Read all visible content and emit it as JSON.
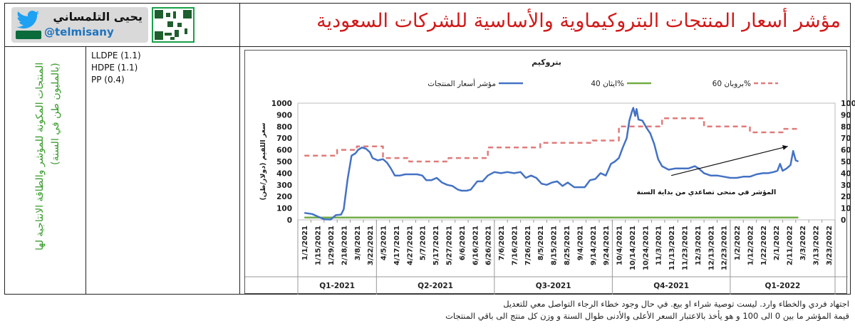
{
  "header": {
    "title": "مؤشر أسعار المنتجات البتروكيماوية والأساسية للشركات السعودية",
    "brand_name_ar": "يحيى التلمساني",
    "brand_handle": "@telmisany"
  },
  "sidebar": {
    "label": "المنتجات المكونة للمؤشر والطاقة الانتاجية لها (بالمليون طن في السنة)",
    "products": [
      "LLDPE (1.1)",
      "HDPE (1.1)",
      "PP (0.4)"
    ]
  },
  "footer": {
    "disclaimer": "اجتهاد فردي والخطاء وارد. ليست توصية شراء او بيع. في حال وجود خطاء الرجاء التواصل معي للتعديل",
    "method": "قيمة المؤشر ما بين 0 الى 100 و هو يأخذ بالاعتبار السعر الأعلى والأدنى طوال السنة و وزن كل منتج الى باقي المنتجات"
  },
  "colors": {
    "title": "#d21919",
    "index_line": "#4472c4",
    "ethane_line": "#70ad47",
    "propane_line": "#e07b7b",
    "sidebar_text": "#3a9a2d",
    "handle": "#1e73be"
  },
  "chart_data": {
    "type": "line",
    "title": "بتروكيم",
    "ylabel": "سعر اللقيم (دولار/طن)",
    "ylim": [
      0,
      1000
    ],
    "y2lim": [
      0,
      100
    ],
    "yticks": [
      0,
      100,
      200,
      300,
      400,
      500,
      600,
      700,
      800,
      900,
      1000
    ],
    "y2ticks": [
      0,
      10,
      20,
      30,
      40,
      50,
      60,
      70,
      80,
      90,
      100
    ],
    "x_tick_labels": [
      "1/1/2021",
      "1/15/2021",
      "1/29/2021",
      "2/18/2021",
      "3/8/2021",
      "3/22/2021",
      "4/5/2021",
      "4/17/2021",
      "4/27/2021",
      "5/7/2021",
      "5/17/2021",
      "5/27/2021",
      "6/6/2021",
      "6/16/2021",
      "6/26/2021",
      "7/6/2021",
      "7/16/2021",
      "7/26/2021",
      "8/5/2021",
      "8/15/2021",
      "8/25/2021",
      "9/4/2021",
      "9/14/2021",
      "9/24/2021",
      "10/4/2021",
      "10/14/2021",
      "10/24/2021",
      "11/3/2021",
      "11/13/2021",
      "11/23/2021",
      "12/3/2021",
      "12/13/2021",
      "12/23/2021",
      "1/2/2022",
      "1/12/2022",
      "1/22/2022",
      "2/1/2022",
      "2/11/2022",
      "3/3/2022",
      "3/13/2022",
      "3/23/2022"
    ],
    "quarters": [
      "Q1-2021",
      "Q2-2021",
      "Q3-2021",
      "Q4-2021",
      "Q1-2022"
    ],
    "legend": [
      "بروبان 60%",
      "ايثان 40%",
      "مؤشر أسعار المنتجات"
    ],
    "annotation": "المؤشر في منحى تصاعدي من بداية السنة",
    "series": [
      {
        "name": "مؤشر أسعار المنتجات",
        "axis": "right",
        "style": "solid",
        "points": [
          [
            0,
            6
          ],
          [
            0.6,
            5
          ],
          [
            1,
            3
          ],
          [
            1.5,
            0.5
          ],
          [
            2,
            0.3
          ],
          [
            2.4,
            4
          ],
          [
            2.8,
            4.5
          ],
          [
            3,
            9
          ],
          [
            3.3,
            35
          ],
          [
            3.6,
            55
          ],
          [
            3.9,
            57
          ],
          [
            4.1,
            60
          ],
          [
            4.4,
            62
          ],
          [
            4.7,
            61
          ],
          [
            5,
            58
          ],
          [
            5.2,
            53
          ],
          [
            5.6,
            51
          ],
          [
            6,
            52
          ],
          [
            6.3,
            49
          ],
          [
            6.6,
            44
          ],
          [
            6.9,
            38
          ],
          [
            7.3,
            38
          ],
          [
            7.7,
            39
          ],
          [
            8.2,
            39
          ],
          [
            8.6,
            39
          ],
          [
            9,
            38
          ],
          [
            9.3,
            34
          ],
          [
            9.7,
            34
          ],
          [
            10.1,
            36
          ],
          [
            10.5,
            32
          ],
          [
            10.9,
            30
          ],
          [
            11.3,
            29
          ],
          [
            11.7,
            26
          ],
          [
            12,
            25
          ],
          [
            12.4,
            25
          ],
          [
            12.7,
            26
          ],
          [
            13.2,
            33
          ],
          [
            13.6,
            33
          ],
          [
            14,
            38
          ],
          [
            14.5,
            41
          ],
          [
            15,
            40
          ],
          [
            15.5,
            41
          ],
          [
            16,
            40
          ],
          [
            16.5,
            41
          ],
          [
            16.9,
            36
          ],
          [
            17.3,
            38
          ],
          [
            17.7,
            36
          ],
          [
            18.1,
            31
          ],
          [
            18.5,
            30
          ],
          [
            18.9,
            32
          ],
          [
            19.3,
            33
          ],
          [
            19.7,
            29
          ],
          [
            20.1,
            32
          ],
          [
            20.6,
            28
          ],
          [
            21,
            28
          ],
          [
            21.4,
            28
          ],
          [
            21.8,
            34
          ],
          [
            22.2,
            35
          ],
          [
            22.6,
            40
          ],
          [
            23,
            38
          ],
          [
            23.4,
            48
          ],
          [
            23.7,
            50
          ],
          [
            24,
            53
          ],
          [
            24.3,
            62
          ],
          [
            24.6,
            70
          ],
          [
            24.8,
            85
          ],
          [
            25,
            93
          ],
          [
            25.1,
            96
          ],
          [
            25.25,
            89
          ],
          [
            25.35,
            95
          ],
          [
            25.5,
            86
          ],
          [
            25.8,
            85
          ],
          [
            26.1,
            79
          ],
          [
            26.4,
            74
          ],
          [
            26.7,
            65
          ],
          [
            27,
            52
          ],
          [
            27.3,
            46
          ],
          [
            27.8,
            43
          ],
          [
            28.3,
            44
          ],
          [
            28.8,
            44
          ],
          [
            29.3,
            44
          ],
          [
            29.8,
            46
          ],
          [
            30.1,
            44
          ],
          [
            30.5,
            40
          ],
          [
            31,
            38
          ],
          [
            31.5,
            38
          ],
          [
            32,
            37
          ],
          [
            32.5,
            36
          ],
          [
            33,
            36
          ],
          [
            33.5,
            37
          ],
          [
            34,
            37
          ],
          [
            34.5,
            39
          ],
          [
            35,
            40
          ],
          [
            35.4,
            40
          ],
          [
            35.8,
            41
          ],
          [
            36.1,
            42
          ],
          [
            36.3,
            48
          ],
          [
            36.5,
            42
          ],
          [
            36.8,
            44
          ],
          [
            37.1,
            47
          ],
          [
            37.3,
            59
          ],
          [
            37.5,
            51
          ],
          [
            37.7,
            50
          ]
        ]
      },
      {
        "name": "ايثان 40%",
        "axis": "right",
        "style": "solid",
        "points": [
          [
            0,
            2
          ],
          [
            37.7,
            2
          ]
        ]
      },
      {
        "name": "بروبان 60%",
        "axis": "right",
        "style": "dashed",
        "points": [
          [
            0,
            55
          ],
          [
            2.5,
            55
          ],
          [
            2.5,
            60
          ],
          [
            4,
            60
          ],
          [
            4,
            63
          ],
          [
            6,
            63
          ],
          [
            6,
            53
          ],
          [
            8,
            53
          ],
          [
            8,
            50
          ],
          [
            11,
            50
          ],
          [
            11,
            53
          ],
          [
            14,
            53
          ],
          [
            14,
            62
          ],
          [
            18,
            62
          ],
          [
            18,
            66
          ],
          [
            22,
            66
          ],
          [
            22,
            68
          ],
          [
            24,
            68
          ],
          [
            24,
            80
          ],
          [
            27.3,
            80
          ],
          [
            27.3,
            87
          ],
          [
            30.5,
            87
          ],
          [
            30.5,
            80
          ],
          [
            34,
            80
          ],
          [
            34,
            75
          ],
          [
            36.5,
            75
          ],
          [
            36.5,
            78
          ],
          [
            37.7,
            78
          ]
        ]
      }
    ]
  }
}
